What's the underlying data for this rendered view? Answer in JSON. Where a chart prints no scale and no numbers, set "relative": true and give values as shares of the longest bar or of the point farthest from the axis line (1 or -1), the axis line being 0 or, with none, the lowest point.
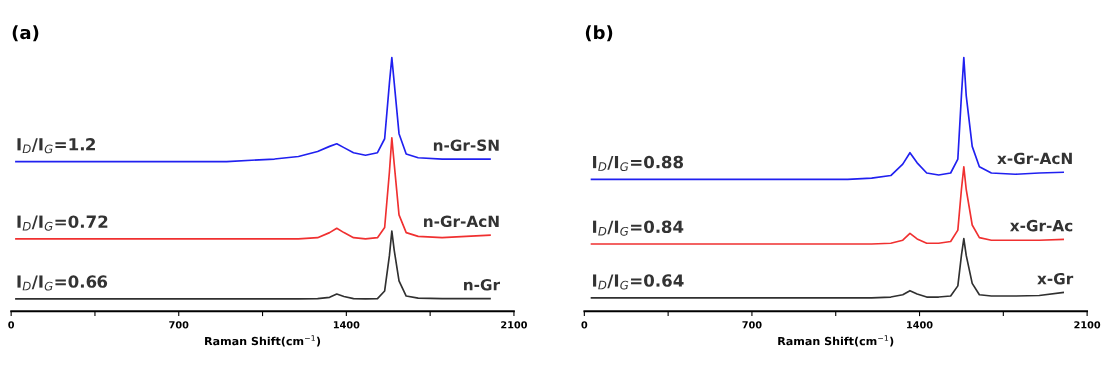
{
  "chart_data": [
    {
      "type": "line",
      "title": "(a)",
      "xlabel": "Raman Shift(cm$^{−1}$)",
      "relative": true,
      "xlim": [
        0,
        2100
      ],
      "xticks": [
        0,
        {
          "value": 350,
          "label": null
        },
        700,
        {
          "value": 1050,
          "label": null
        },
        1400,
        {
          "value": 1750,
          "label": null
        },
        2100
      ],
      "annotations": [
        "I$_{D}$/I$_{G}$=1.2",
        "I$_{D}$/I$_{G}$=0.72",
        "I$_{D}$/I$_{G}$=0.66"
      ],
      "series": [
        {
          "name": "n-Gr-SN",
          "color": "#2020f0",
          "x": [
            20,
            150,
            300,
            500,
            700,
            900,
            1100,
            1200,
            1280,
            1330,
            1360,
            1390,
            1430,
            1480,
            1530,
            1560,
            1580,
            1590,
            1600,
            1620,
            1650,
            1700,
            1800,
            1900,
            2000
          ],
          "values": [
            0.59,
            0.59,
            0.59,
            0.59,
            0.59,
            0.59,
            0.6,
            0.61,
            0.63,
            0.65,
            0.66,
            0.645,
            0.625,
            0.615,
            0.625,
            0.68,
            0.9,
            1.0,
            0.9,
            0.7,
            0.62,
            0.605,
            0.6,
            0.6,
            0.6
          ]
        },
        {
          "name": "n-Gr-AcN",
          "color": "#f03030",
          "x": [
            20,
            150,
            300,
            500,
            700,
            900,
            1100,
            1200,
            1280,
            1330,
            1360,
            1390,
            1430,
            1480,
            1530,
            1560,
            1580,
            1590,
            1600,
            1620,
            1650,
            1700,
            1800,
            1900,
            2000
          ],
          "values": [
            0.285,
            0.285,
            0.285,
            0.285,
            0.285,
            0.285,
            0.285,
            0.285,
            0.29,
            0.31,
            0.327,
            0.31,
            0.29,
            0.285,
            0.29,
            0.33,
            0.55,
            0.684,
            0.58,
            0.38,
            0.31,
            0.295,
            0.29,
            0.295,
            0.3
          ]
        },
        {
          "name": "n-Gr",
          "color": "#303030",
          "x": [
            20,
            150,
            300,
            500,
            700,
            900,
            1100,
            1200,
            1280,
            1330,
            1360,
            1390,
            1430,
            1480,
            1530,
            1560,
            1580,
            1590,
            1600,
            1620,
            1650,
            1700,
            1800,
            1900,
            2000
          ],
          "values": [
            0.049,
            0.049,
            0.049,
            0.049,
            0.049,
            0.049,
            0.049,
            0.049,
            0.05,
            0.055,
            0.068,
            0.058,
            0.05,
            0.049,
            0.05,
            0.08,
            0.22,
            0.316,
            0.24,
            0.12,
            0.06,
            0.052,
            0.05,
            0.05,
            0.05
          ]
        }
      ]
    },
    {
      "type": "line",
      "title": "(b)",
      "xlabel": "Raman Shift(cm$^{−1}$)",
      "relative": true,
      "xlim": [
        0,
        2100
      ],
      "xticks": [
        0,
        {
          "value": 350,
          "label": null
        },
        700,
        {
          "value": 1050,
          "label": null
        },
        1400,
        {
          "value": 1750,
          "label": null
        },
        2100
      ],
      "annotations": [
        "I$_{D}$/I$_{G}$=0.88",
        "I$_{D}$/I$_{G}$=0.84",
        "I$_{D}$/I$_{G}$=0.64"
      ],
      "series": [
        {
          "name": "x-Gr-AcN",
          "color": "#2020f0",
          "x": [
            30,
            150,
            300,
            500,
            700,
            900,
            1100,
            1200,
            1280,
            1330,
            1360,
            1390,
            1430,
            1480,
            1530,
            1560,
            1575,
            1585,
            1595,
            1620,
            1650,
            1700,
            1800,
            1900,
            2000
          ],
          "values": [
            0.52,
            0.52,
            0.52,
            0.52,
            0.52,
            0.52,
            0.52,
            0.525,
            0.535,
            0.58,
            0.625,
            0.585,
            0.545,
            0.537,
            0.545,
            0.6,
            0.85,
            1.0,
            0.85,
            0.65,
            0.57,
            0.545,
            0.54,
            0.545,
            0.548
          ]
        },
        {
          "name": "x-Gr-Ac",
          "color": "#f03030",
          "x": [
            30,
            150,
            300,
            500,
            700,
            900,
            1100,
            1200,
            1280,
            1330,
            1360,
            1390,
            1430,
            1480,
            1530,
            1560,
            1575,
            1585,
            1595,
            1620,
            1650,
            1700,
            1800,
            1900,
            2000
          ],
          "values": [
            0.265,
            0.265,
            0.265,
            0.265,
            0.265,
            0.265,
            0.265,
            0.265,
            0.268,
            0.28,
            0.307,
            0.285,
            0.268,
            0.268,
            0.275,
            0.32,
            0.48,
            0.569,
            0.48,
            0.34,
            0.29,
            0.28,
            0.28,
            0.28,
            0.283
          ]
        },
        {
          "name": "x-Gr",
          "color": "#303030",
          "x": [
            30,
            150,
            300,
            500,
            700,
            900,
            1100,
            1200,
            1280,
            1330,
            1360,
            1390,
            1430,
            1480,
            1530,
            1560,
            1575,
            1585,
            1595,
            1620,
            1650,
            1700,
            1800,
            1900,
            2000
          ],
          "values": [
            0.053,
            0.053,
            0.053,
            0.053,
            0.053,
            0.053,
            0.053,
            0.053,
            0.056,
            0.065,
            0.081,
            0.068,
            0.056,
            0.056,
            0.06,
            0.1,
            0.22,
            0.286,
            0.22,
            0.11,
            0.065,
            0.06,
            0.06,
            0.062,
            0.074
          ]
        }
      ]
    }
  ]
}
